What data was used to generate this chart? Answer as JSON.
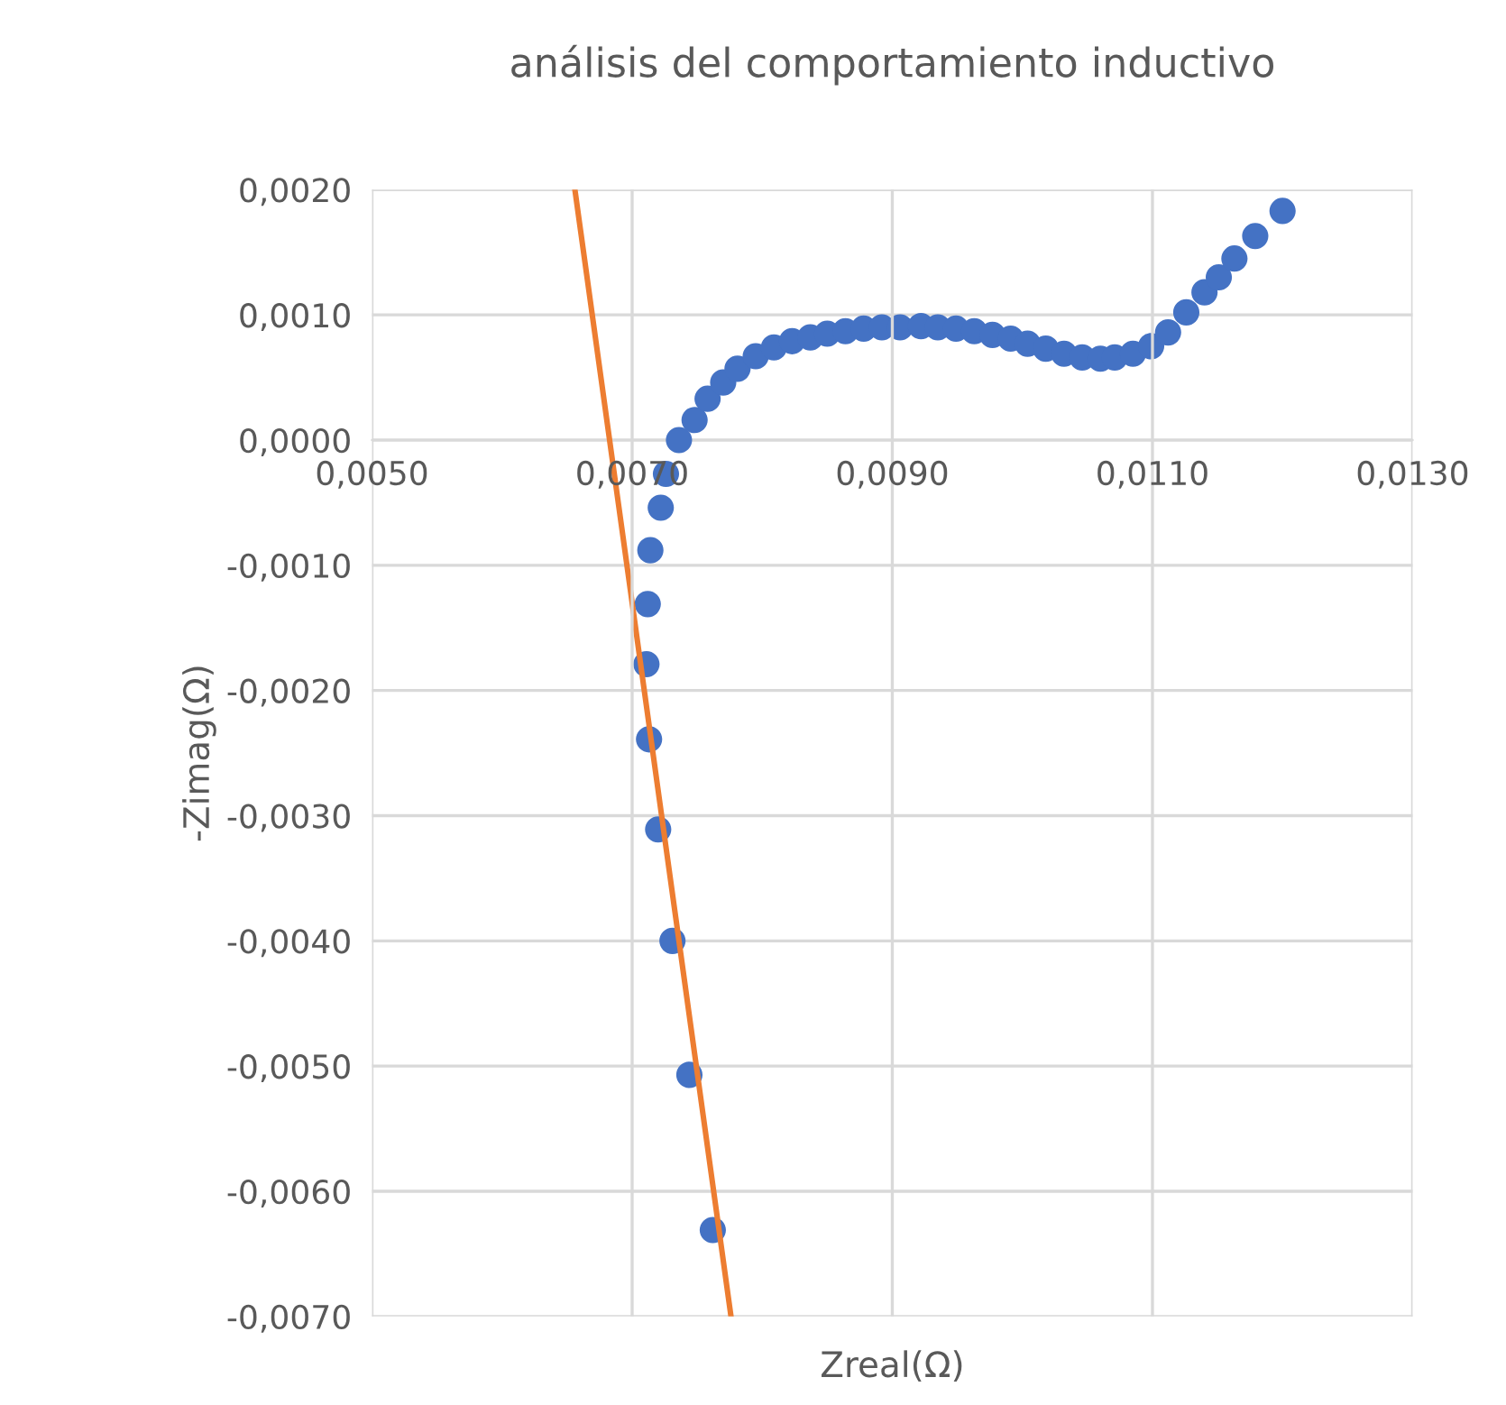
{
  "chart_data": {
    "type": "scatter",
    "title": "análisis del comportamiento inductivo",
    "xlabel": "Zreal(Ω)",
    "ylabel": "-Zimag(Ω)",
    "xlim": [
      0.005,
      0.013
    ],
    "ylim": [
      -0.007,
      0.002
    ],
    "xticks": [
      {
        "value": 0.005,
        "label": "0,0050"
      },
      {
        "value": 0.007,
        "label": "0,0070"
      },
      {
        "value": 0.009,
        "label": "0,0090"
      },
      {
        "value": 0.011,
        "label": "0,0110"
      },
      {
        "value": 0.013,
        "label": "0,0130"
      }
    ],
    "yticks": [
      {
        "value": 0.002,
        "label": "0,0020"
      },
      {
        "value": 0.001,
        "label": "0,0010"
      },
      {
        "value": 0,
        "label": "0,0000"
      },
      {
        "value": -0.001,
        "label": "-0,0010"
      },
      {
        "value": -0.002,
        "label": "-0,0020"
      },
      {
        "value": -0.003,
        "label": "-0,0030"
      },
      {
        "value": -0.004,
        "label": "-0,0040"
      },
      {
        "value": -0.005,
        "label": "-0,0050"
      },
      {
        "value": -0.006,
        "label": "-0,0060"
      },
      {
        "value": -0.007,
        "label": "-0,0070"
      }
    ],
    "grid": true,
    "legend": false,
    "series": [
      {
        "marker": "circle",
        "color": "#4472c4",
        "x": [
          0.00762,
          0.00744,
          0.00731,
          0.0072,
          0.00713,
          0.00711,
          0.00712,
          0.00714,
          0.00722,
          0.00726,
          0.00736,
          0.00748,
          0.00758,
          0.0077,
          0.00781,
          0.00795,
          0.00809,
          0.00823,
          0.00837,
          0.0085,
          0.00864,
          0.00878,
          0.00892,
          0.00906,
          0.00922,
          0.00935,
          0.00949,
          0.00963,
          0.00977,
          0.00991,
          0.01004,
          0.01018,
          0.01032,
          0.01046,
          0.0106,
          0.01071,
          0.01085,
          0.01099,
          0.01112,
          0.01126,
          0.0114,
          0.01151,
          0.01163,
          0.01179,
          0.012
        ],
        "values": [
          -0.00631,
          -0.00507,
          -0.004,
          -0.00311,
          -0.00239,
          -0.00179,
          -0.00131,
          -0.00088,
          -0.00054,
          -0.00027,
          0.0,
          0.00016,
          0.00033,
          0.00046,
          0.00057,
          0.00067,
          0.00074,
          0.00079,
          0.00082,
          0.00085,
          0.00087,
          0.00089,
          0.0009,
          0.0009,
          0.00091,
          0.0009,
          0.00089,
          0.00087,
          0.00084,
          0.00081,
          0.00077,
          0.00073,
          0.00069,
          0.00066,
          0.00065,
          0.00066,
          0.00069,
          0.00075,
          0.00086,
          0.00102,
          0.00118,
          0.0013,
          0.00145,
          0.00163,
          0.00183
        ]
      },
      {
        "type": "line",
        "marker": "none",
        "color": "#ed7d31",
        "x": [
          0.00656,
          0.00776
        ],
        "values": [
          0.002,
          -0.007
        ]
      }
    ]
  }
}
